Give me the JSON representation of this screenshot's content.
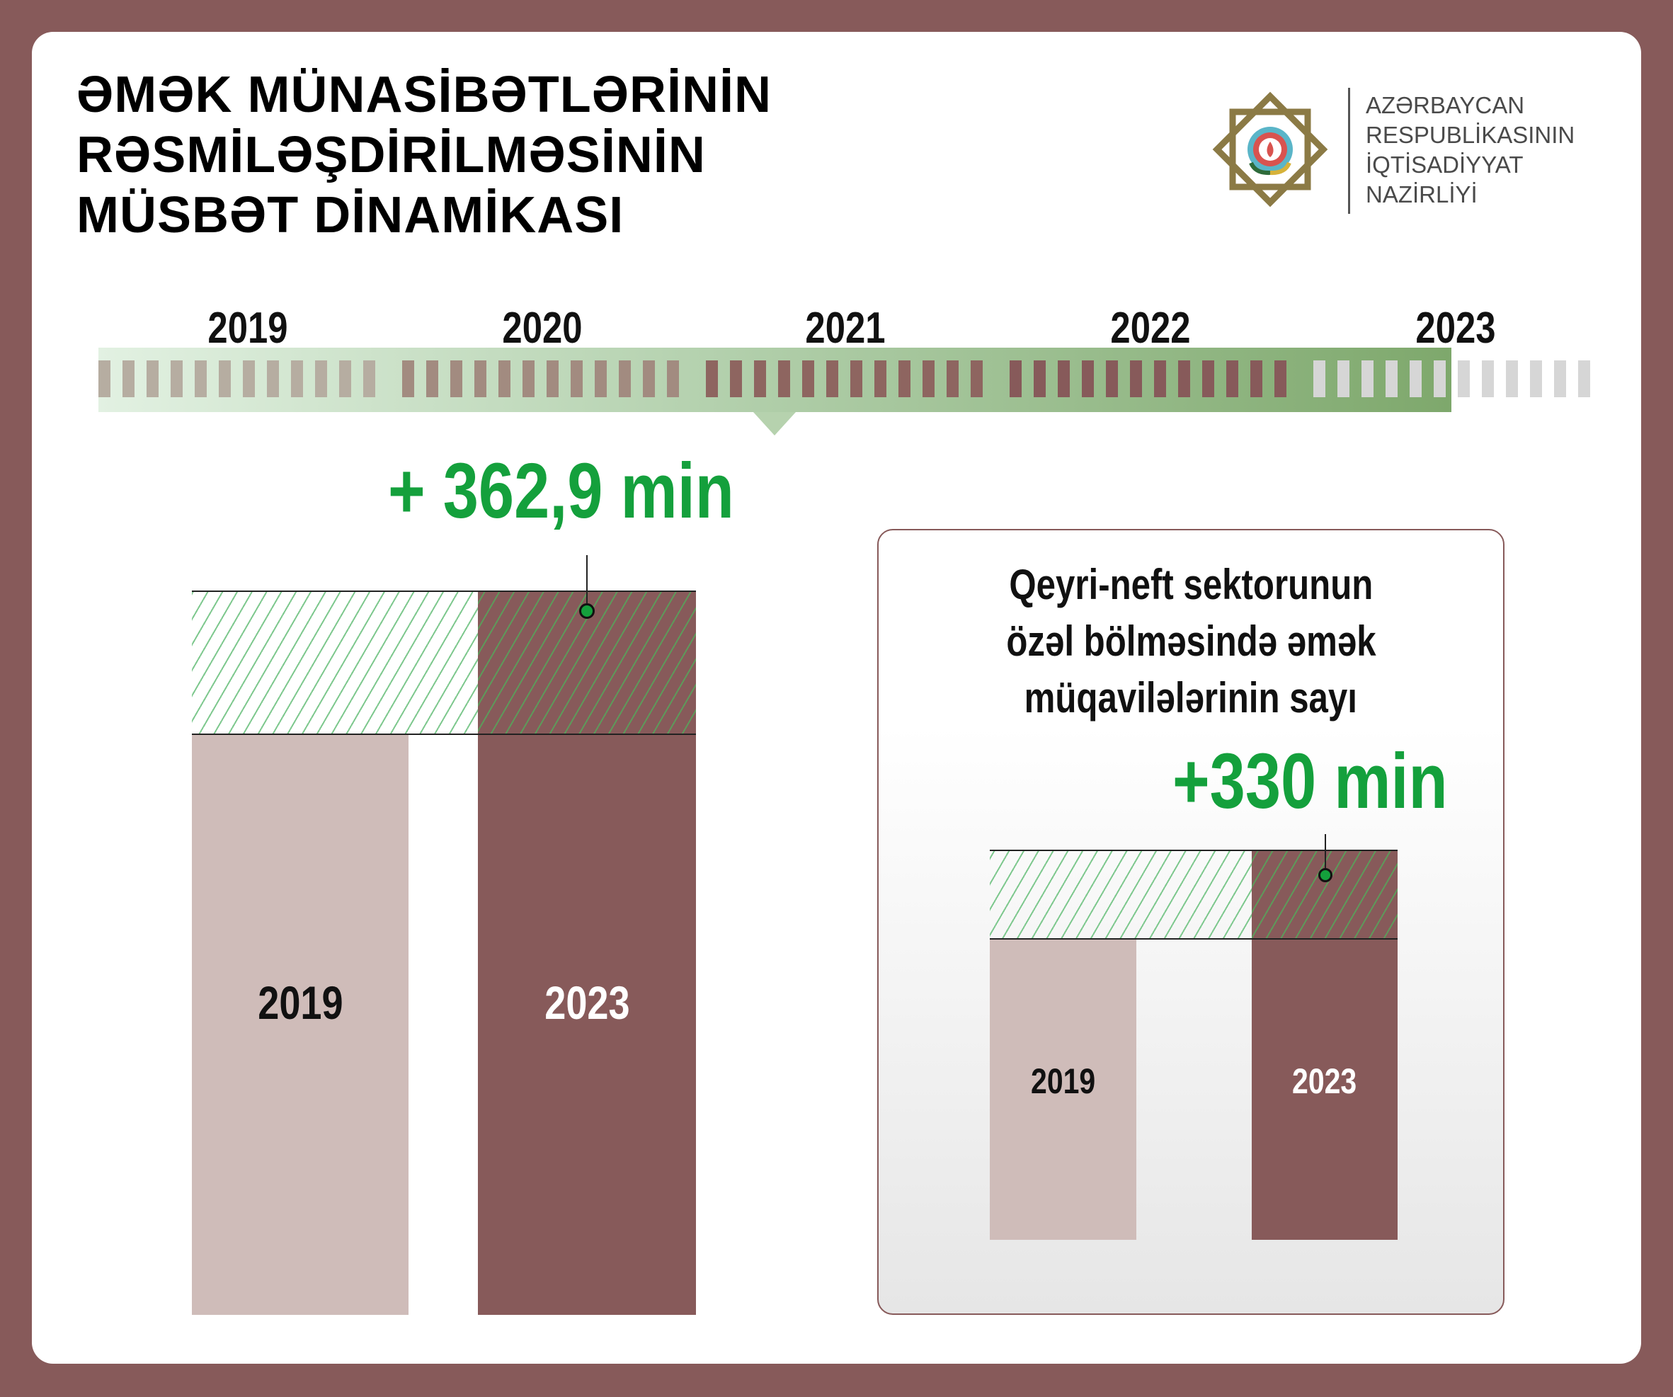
{
  "title": {
    "lines": [
      "ƏMƏK MÜNASİBƏTLƏRİNİN",
      "RƏSMİLƏŞDİRİLMƏSİNİN",
      "MÜSBƏT DİNAMİKASI"
    ]
  },
  "logo": {
    "icon": "ministry-emblem",
    "lines": [
      "AZƏRBAYCAN",
      "RESPUBLİKASININ",
      "İQTİSADİYYAT",
      "NAZİRLİYİ"
    ]
  },
  "timeline": {
    "years": [
      "2019",
      "2020",
      "2021",
      "2022",
      "2023"
    ],
    "tick_colors": [
      "#b6ada1",
      "#a28b80",
      "#8e6560",
      "#875a5a",
      "#d6d6d6"
    ]
  },
  "colors": {
    "frame": "#875a5a",
    "bar_2019": "#cfbcb9",
    "bar_2023": "#875a5a",
    "accent_green": "#14a03c"
  },
  "chart_data": [
    {
      "type": "bar",
      "categories": [
        "2019",
        "2023"
      ],
      "annotation": "+ 362,9 min",
      "increase": 362.9,
      "unit": "min",
      "title": ""
    },
    {
      "type": "bar",
      "title": "Qeyri-neft sektorunun özəl bölməsində əmək müqavilələrinin sayı",
      "title_lines": [
        "Qeyri-neft sektorunun",
        "özəl bölməsində əmək",
        "müqavilələrinin sayı"
      ],
      "categories": [
        "2019",
        "2023"
      ],
      "annotation": "+330 min",
      "increase": 330,
      "unit": "min"
    }
  ]
}
